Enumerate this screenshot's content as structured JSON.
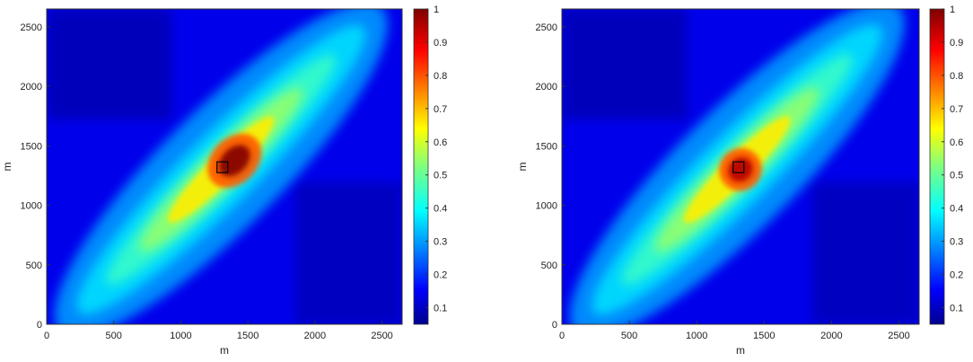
{
  "chart_data": [
    {
      "type": "heatmap",
      "xlabel": "m",
      "ylabel": "m",
      "xlim": [
        0,
        2650
      ],
      "ylim": [
        0,
        2650
      ],
      "xticks": [
        "0",
        "500",
        "1000",
        "1500",
        "2000",
        "2500"
      ],
      "yticks": [
        "0",
        "500",
        "1000",
        "1500",
        "2000",
        "2500"
      ],
      "colorbar": {
        "min": 0.05,
        "max": 1,
        "ticks": [
          "0.1",
          "0.2",
          "0.3",
          "0.4",
          "0.5",
          "0.6",
          "0.7",
          "0.8",
          "0.9",
          "1"
        ],
        "colormap": "jet"
      },
      "marker": {
        "shape": "square",
        "x": 1310,
        "y": 1320
      },
      "intensity_field": {
        "background": 0.15,
        "band_axis_angle_deg": 45,
        "center": [
          1300,
          1300
        ],
        "peak": {
          "x": [
            1150,
            1650
          ],
          "y": [
            1050,
            1700
          ],
          "value": 1.0
        }
      }
    },
    {
      "type": "heatmap",
      "xlabel": "m",
      "ylabel": "m",
      "xlim": [
        0,
        2650
      ],
      "ylim": [
        0,
        2650
      ],
      "xticks": [
        "0",
        "500",
        "1000",
        "1500",
        "2000",
        "2500"
      ],
      "yticks": [
        "0",
        "500",
        "1000",
        "1500",
        "2000",
        "2500"
      ],
      "colorbar": {
        "min": 0.05,
        "max": 1,
        "ticks": [
          "0.1",
          "0.2",
          "0.3",
          "0.4",
          "0.5",
          "0.6",
          "0.7",
          "0.8",
          "0.9",
          "1"
        ],
        "colormap": "jet"
      },
      "marker": {
        "shape": "square",
        "x": 1310,
        "y": 1320
      },
      "intensity_field": {
        "background": 0.15,
        "band_axis_angle_deg": 45,
        "center": [
          1300,
          1300
        ],
        "peak": {
          "x": [
            1150,
            1500
          ],
          "y": [
            1000,
            1600
          ],
          "value": 0.95
        }
      }
    }
  ]
}
